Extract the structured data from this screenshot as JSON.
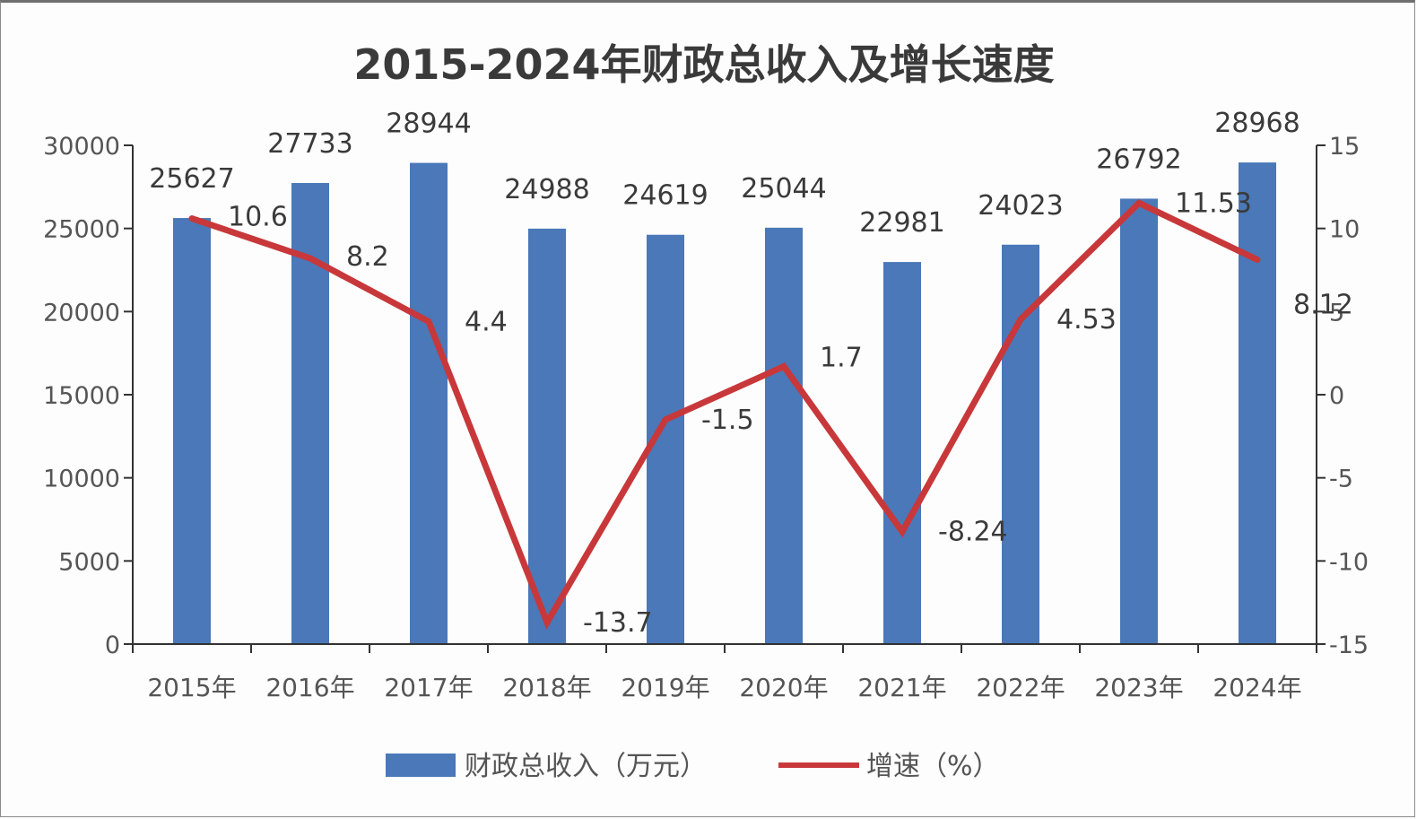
{
  "chart_data": {
    "type": "bar",
    "title": "2015-2024年财政总收入及增长速度",
    "categories": [
      "2015年",
      "2016年",
      "2017年",
      "2018年",
      "2019年",
      "2020年",
      "2021年",
      "2022年",
      "2023年",
      "2024年"
    ],
    "series": [
      {
        "name": "财政总收入（万元）",
        "type": "bar",
        "axis": "left",
        "color": "#4a78b8",
        "values": [
          25627,
          27733,
          28944,
          24988,
          24619,
          25044,
          22981,
          24023,
          26792,
          28968
        ],
        "labels": [
          "25627",
          "27733",
          "28944",
          "24988",
          "24619",
          "25044",
          "22981",
          "24023",
          "26792",
          "28968"
        ]
      },
      {
        "name": "增速（%）",
        "type": "line",
        "axis": "right",
        "color": "#c8383a",
        "values": [
          10.6,
          8.2,
          4.4,
          -13.7,
          -1.5,
          1.7,
          -8.24,
          4.53,
          11.53,
          8.12
        ],
        "labels": [
          "10.6",
          "8.2",
          "4.4",
          "-13.7",
          "-1.5",
          "1.7",
          "-8.24",
          "4.53",
          "11.53",
          "8.12"
        ]
      }
    ],
    "left_axis": {
      "min": 0,
      "max": 30000,
      "step": 5000,
      "ticks": [
        "0",
        "5000",
        "10000",
        "15000",
        "20000",
        "25000",
        "30000"
      ]
    },
    "right_axis": {
      "min": -15,
      "max": 15,
      "step": 5,
      "ticks": [
        "-15",
        "-10",
        "-5",
        "0",
        "5",
        "10",
        "15"
      ]
    },
    "grid": false,
    "legend_position": "bottom"
  }
}
